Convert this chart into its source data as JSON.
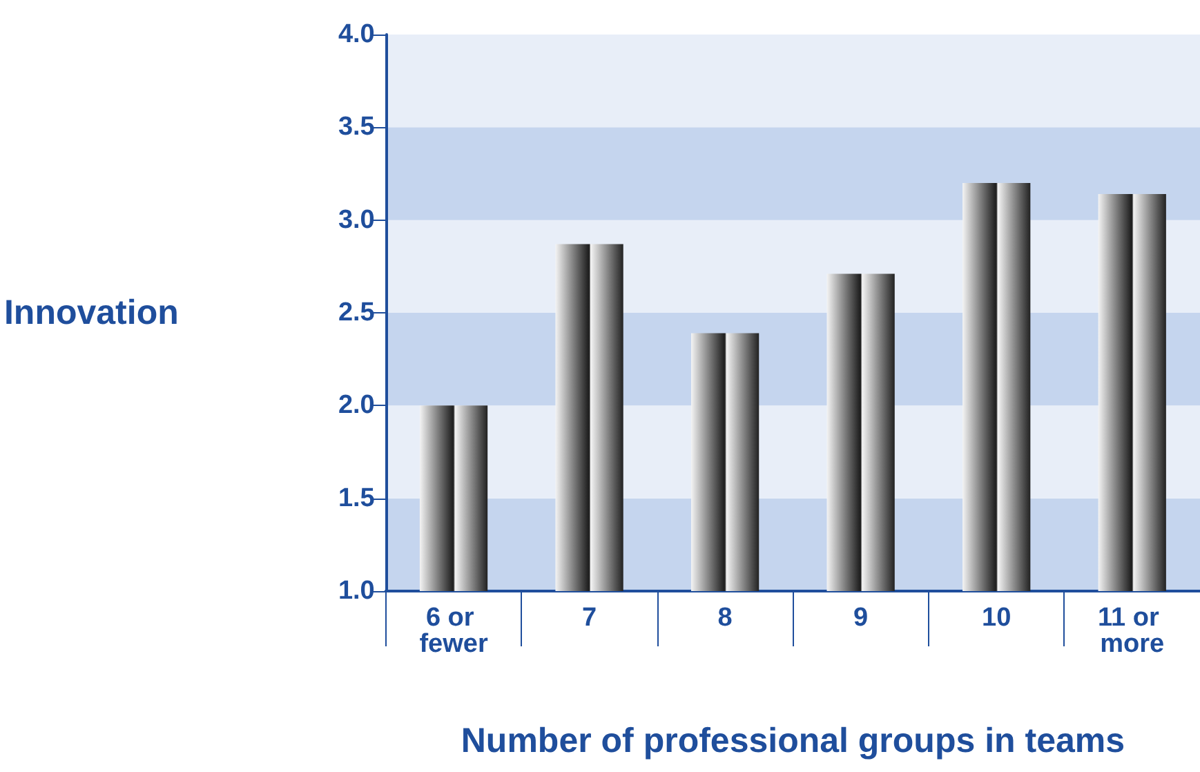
{
  "chart_data": {
    "type": "bar",
    "xlabel": "Number of professional groups in teams",
    "ylabel": "Innovation",
    "categories": [
      "6 or fewer",
      "7",
      "8",
      "9",
      "10",
      "11 or more"
    ],
    "values": [
      2.0,
      2.87,
      2.39,
      2.71,
      3.2,
      3.14
    ],
    "color": "#222222",
    "ylim": [
      1.0,
      4.0
    ],
    "yticks": [
      {
        "value": 1,
        "label": "1.0"
      },
      {
        "value": 1.5,
        "label": "1.5"
      },
      {
        "value": 2,
        "label": "2.0"
      },
      {
        "value": 2.5,
        "label": "2.5"
      },
      {
        "value": 3,
        "label": "3.0"
      },
      {
        "value": 3.5,
        "label": "3.5"
      },
      {
        "value": 4,
        "label": "4.0"
      }
    ],
    "bands": [
      {
        "axis": "y",
        "from": 1.0,
        "to": 1.5,
        "color": "#c5d5ee"
      },
      {
        "axis": "y",
        "from": 1.5,
        "to": 2.0,
        "color": "#e8eef8"
      },
      {
        "axis": "y",
        "from": 2.0,
        "to": 2.5,
        "color": "#c5d5ee"
      },
      {
        "axis": "y",
        "from": 2.5,
        "to": 3.0,
        "color": "#e8eef8"
      },
      {
        "axis": "y",
        "from": 3.0,
        "to": 3.5,
        "color": "#c5d5ee"
      },
      {
        "axis": "y",
        "from": 3.5,
        "to": 4.0,
        "color": "#e8eef8"
      }
    ]
  }
}
